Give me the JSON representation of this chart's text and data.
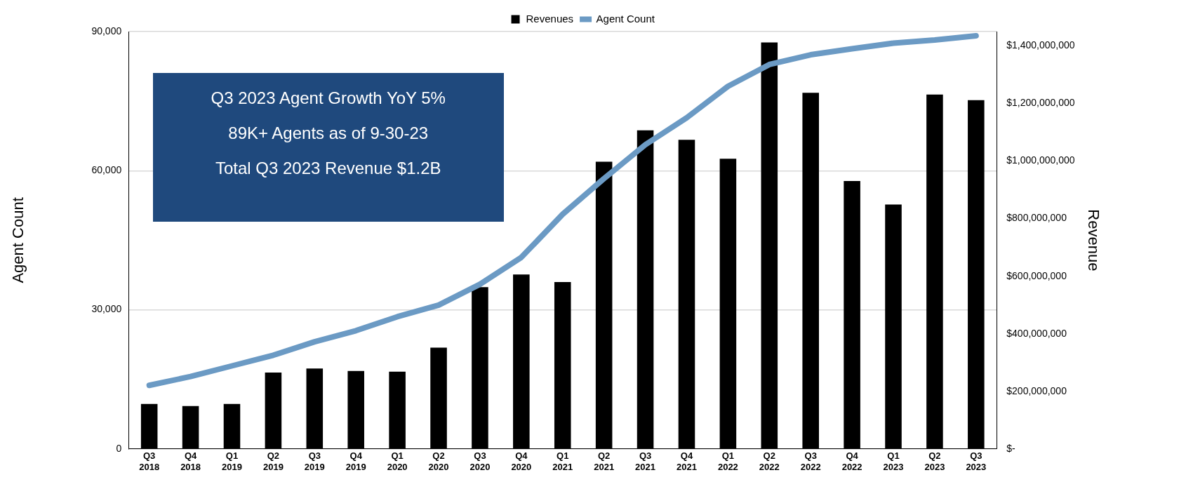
{
  "chart_data": {
    "type": "bar",
    "categories": [
      "Q3 2018",
      "Q4 2018",
      "Q1 2019",
      "Q2 2019",
      "Q3 2019",
      "Q4 2019",
      "Q1 2020",
      "Q2 2020",
      "Q3 2020",
      "Q4 2020",
      "Q1 2021",
      "Q2 2021",
      "Q3 2021",
      "Q4 2021",
      "Q1 2022",
      "Q2 2022",
      "Q3 2022",
      "Q4 2022",
      "Q1 2023",
      "Q2 2023",
      "Q3 2023"
    ],
    "series": [
      {
        "name": "Revenues",
        "axis": "y2",
        "color": "#000000",
        "values": [
          156000000,
          149000000,
          156000000,
          265000000,
          279000000,
          271000000,
          268000000,
          352000000,
          562000000,
          606000000,
          580000000,
          998000000,
          1107000000,
          1074000000,
          1008000000,
          1412000000,
          1237000000,
          931000000,
          849000000,
          1231000000,
          1212000000
        ]
      },
      {
        "name": "Agent Count",
        "type": "line",
        "color": "#6b9ac4",
        "values": [
          13700,
          15600,
          17900,
          20200,
          23100,
          25500,
          28500,
          31000,
          35500,
          41300,
          50600,
          58300,
          65600,
          71400,
          78200,
          82900,
          85000,
          86300,
          87500,
          88200,
          89100
        ]
      }
    ],
    "ylabel": "Agent Count",
    "y2label": "Revenue",
    "ylim": [
      0,
      90000
    ],
    "yticks": [
      {
        "value": 0,
        "label": "0"
      },
      {
        "value": 30000,
        "label": "30,000"
      },
      {
        "value": 60000,
        "label": "60,000"
      },
      {
        "value": 90000,
        "label": "90,000"
      }
    ],
    "y2lim": [
      0,
      1450000000
    ],
    "y2ticks": [
      {
        "value": 0,
        "label": "$-"
      },
      {
        "value": 200000000,
        "label": "$200,000,000"
      },
      {
        "value": 400000000,
        "label": "$400,000,000"
      },
      {
        "value": 600000000,
        "label": "$600,000,000"
      },
      {
        "value": 800000000,
        "label": "$800,000,000"
      },
      {
        "value": 1000000000,
        "label": "$1,000,000,000"
      },
      {
        "value": 1200000000,
        "label": "$1,200,000,000"
      },
      {
        "value": 1400000000,
        "label": "$1,400,000,000"
      }
    ],
    "grid": "y",
    "legend": "top",
    "marker": "none",
    "annotations": [
      "Q3 2023 Agent Growth YoY 5%",
      "89K+ Agents as of 9-30-23",
      "Total Q3 2023 Revenue $1.2B"
    ]
  }
}
